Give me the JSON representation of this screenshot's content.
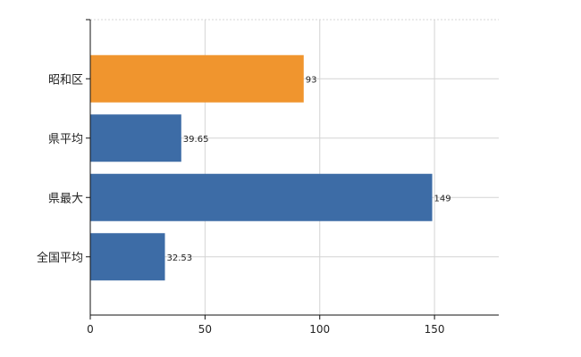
{
  "chart_data": {
    "type": "bar",
    "orientation": "horizontal",
    "categories": [
      "昭和区",
      "県平均",
      "県最大",
      "全国平均"
    ],
    "values": [
      93,
      39.65,
      149,
      32.53
    ],
    "value_labels": [
      "93",
      "39.65",
      "149",
      "32.53"
    ],
    "bar_colors": [
      "#f0952e",
      "#3d6ca6",
      "#3d6ca6",
      "#3d6ca6"
    ],
    "xlim": [
      0,
      178
    ],
    "xticks": [
      0,
      50,
      100,
      150
    ],
    "xtick_labels": [
      "0",
      "50",
      "100",
      "150"
    ],
    "grid": true,
    "legend": "none",
    "title": "",
    "xlabel": "",
    "ylabel": ""
  }
}
